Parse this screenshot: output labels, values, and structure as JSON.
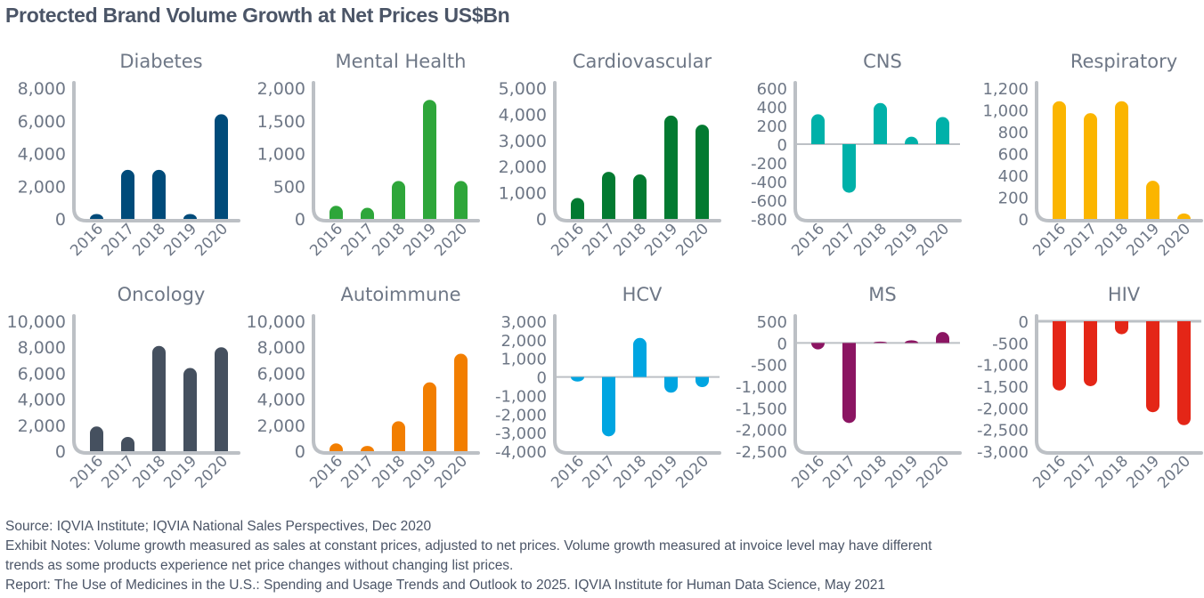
{
  "title": "Protected Brand Volume Growth at Net Prices US$Bn",
  "footnotes": {
    "source": "Source: IQVIA Institute; IQVIA National Sales Perspectives, Dec 2020",
    "notes_line1": "Exhibit Notes: Volume growth measured as sales at constant prices, adjusted to net prices. Volume growth measured at invoice level may have different",
    "notes_line2": "trends as some products experience net price changes without changing list prices.",
    "report": "Report: The Use of Medicines in the U.S.: Spending and Usage Trends and Outlook to 2025. IQVIA Institute for Human Data Science, May 2021"
  },
  "colors": {
    "axis": "#bcc0c5",
    "tick_text": "#6e7786",
    "title_text": "#6e7786"
  },
  "chart_data": [
    {
      "type": "bar",
      "title": "Diabetes",
      "categories": [
        "2016",
        "2017",
        "2018",
        "2019",
        "2020"
      ],
      "values": [
        300,
        3000,
        3000,
        300,
        6400
      ],
      "ylim": [
        0,
        8000
      ],
      "yticks": [
        0,
        2000,
        4000,
        6000,
        8000
      ],
      "ytick_labels": [
        "0",
        "2,000",
        "4,000",
        "6,000",
        "8,000"
      ],
      "color": "#004b7a",
      "xlabel": "",
      "ylabel": "",
      "grid": false
    },
    {
      "type": "bar",
      "title": "Mental Health",
      "categories": [
        "2016",
        "2017",
        "2018",
        "2019",
        "2020"
      ],
      "values": [
        200,
        170,
        580,
        1820,
        580
      ],
      "ylim": [
        0,
        2000
      ],
      "yticks": [
        0,
        500,
        1000,
        1500,
        2000
      ],
      "ytick_labels": [
        "0",
        "500",
        "1,000",
        "1,500",
        "2,000"
      ],
      "color": "#2ea63a",
      "xlabel": "",
      "ylabel": "",
      "grid": false
    },
    {
      "type": "bar",
      "title": "Cardiovascular",
      "categories": [
        "2016",
        "2017",
        "2018",
        "2019",
        "2020"
      ],
      "values": [
        800,
        1800,
        1700,
        3950,
        3600
      ],
      "ylim": [
        0,
        5000
      ],
      "yticks": [
        0,
        1000,
        2000,
        3000,
        4000,
        5000
      ],
      "ytick_labels": [
        "0",
        "1,000",
        "2,000",
        "3,000",
        "4,000",
        "5,000"
      ],
      "color": "#037a31",
      "xlabel": "",
      "ylabel": "",
      "grid": false
    },
    {
      "type": "bar",
      "title": "CNS",
      "categories": [
        "2016",
        "2017",
        "2018",
        "2019",
        "2020"
      ],
      "values": [
        320,
        -520,
        440,
        80,
        290
      ],
      "ylim": [
        -800,
        600
      ],
      "yticks": [
        -800,
        -600,
        -400,
        -200,
        0,
        200,
        400,
        600
      ],
      "ytick_labels": [
        "-800",
        "-600",
        "-400",
        "-200",
        "0",
        "200",
        "400",
        "600"
      ],
      "color": "#00b1a9",
      "xlabel": "",
      "ylabel": "",
      "grid": false
    },
    {
      "type": "bar",
      "title": "Respiratory",
      "categories": [
        "2016",
        "2017",
        "2018",
        "2019",
        "2020"
      ],
      "values": [
        1080,
        970,
        1080,
        350,
        50
      ],
      "ylim": [
        0,
        1200
      ],
      "yticks": [
        0,
        200,
        400,
        600,
        800,
        1000,
        1200
      ],
      "ytick_labels": [
        "0",
        "200",
        "400",
        "600",
        "800",
        "1,000",
        "1,200"
      ],
      "color": "#fbb500",
      "xlabel": "",
      "ylabel": "",
      "grid": false
    },
    {
      "type": "bar",
      "title": "Oncology",
      "categories": [
        "2016",
        "2017",
        "2018",
        "2019",
        "2020"
      ],
      "values": [
        1900,
        1100,
        8100,
        6400,
        8000
      ],
      "ylim": [
        0,
        10000
      ],
      "yticks": [
        0,
        2000,
        4000,
        6000,
        8000,
        10000
      ],
      "ytick_labels": [
        "0",
        "2,000",
        "4,000",
        "6,000",
        "8,000",
        "10,000"
      ],
      "color": "#45505f",
      "xlabel": "",
      "ylabel": "",
      "grid": false
    },
    {
      "type": "bar",
      "title": "Autoimmune",
      "categories": [
        "2016",
        "2017",
        "2018",
        "2019",
        "2020"
      ],
      "values": [
        600,
        400,
        2300,
        5300,
        7500
      ],
      "ylim": [
        0,
        10000
      ],
      "yticks": [
        0,
        2000,
        4000,
        6000,
        8000,
        10000
      ],
      "ytick_labels": [
        "0",
        "2,000",
        "4,000",
        "6,000",
        "8,000",
        "10,000"
      ],
      "color": "#f27e00",
      "xlabel": "",
      "ylabel": "",
      "grid": false
    },
    {
      "type": "bar",
      "title": "HCV",
      "categories": [
        "2016",
        "2017",
        "2018",
        "2019",
        "2020"
      ],
      "values": [
        -250,
        -3200,
        2100,
        -850,
        -550
      ],
      "ylim": [
        -4000,
        3000
      ],
      "yticks": [
        -4000,
        -3000,
        -2000,
        -1000,
        0,
        1000,
        2000,
        3000
      ],
      "ytick_labels": [
        "-4,000",
        "-3,000",
        "-2,000",
        "-1,000",
        "0",
        "1,000",
        "2,000",
        "3,000"
      ],
      "color": "#00a5e1",
      "xlabel": "",
      "ylabel": "",
      "grid": false
    },
    {
      "type": "bar",
      "title": "MS",
      "categories": [
        "2016",
        "2017",
        "2018",
        "2019",
        "2020"
      ],
      "values": [
        -150,
        -1850,
        30,
        60,
        250
      ],
      "ylim": [
        -2500,
        500
      ],
      "yticks": [
        -2500,
        -2000,
        -1500,
        -1000,
        -500,
        0,
        500
      ],
      "ytick_labels": [
        "-2,500",
        "-2,000",
        "-1,500",
        "-1,000",
        "-500",
        "0",
        "500"
      ],
      "color": "#8b1562",
      "xlabel": "",
      "ylabel": "",
      "grid": false
    },
    {
      "type": "bar",
      "title": "HIV",
      "categories": [
        "2016",
        "2017",
        "2018",
        "2019",
        "2020"
      ],
      "values": [
        -1600,
        -1500,
        -300,
        -2100,
        -2400
      ],
      "ylim": [
        -3000,
        0
      ],
      "yticks": [
        -3000,
        -2500,
        -2000,
        -1500,
        -1000,
        -500,
        0
      ],
      "ytick_labels": [
        "-3,000",
        "-2,500",
        "-2,000",
        "-1,500",
        "-1,000",
        "-500",
        "0"
      ],
      "color": "#e42617",
      "xlabel": "",
      "ylabel": "",
      "grid": false
    }
  ]
}
